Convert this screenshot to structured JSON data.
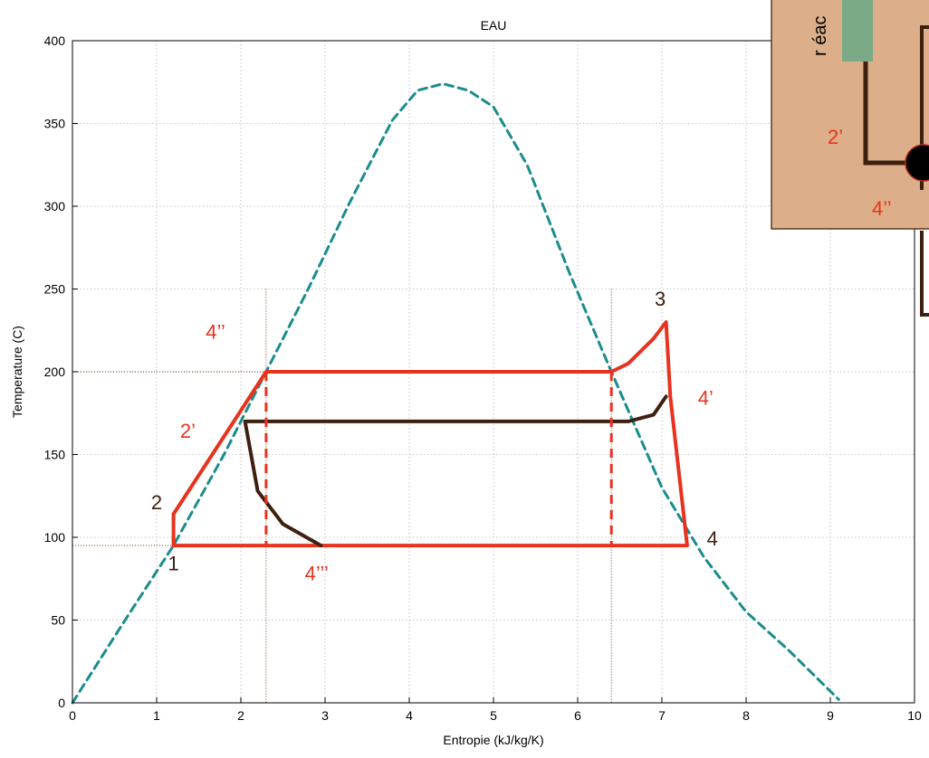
{
  "chart_data": {
    "type": "line",
    "title": "EAU",
    "xlabel": "Entropie (kJ/kg/K)",
    "ylabel": "Temperature (C)",
    "xlim": [
      0,
      10
    ],
    "ylim": [
      0,
      400
    ],
    "xticks": [
      0,
      1,
      2,
      3,
      4,
      5,
      6,
      7,
      8,
      9,
      10
    ],
    "yticks": [
      0,
      50,
      100,
      150,
      200,
      250,
      300,
      350,
      400
    ],
    "grid": true,
    "colors": {
      "dome": "#1a8c8c",
      "cycle": "#e8321e",
      "regen": "#3d2010",
      "label_dark": "#3d2010",
      "label_red": "#e8321e",
      "inset_bg": "#dcae89",
      "inset_block": "#7aaa86"
    },
    "series": [
      {
        "role": "saturation-dome",
        "style": "dashed",
        "color": "#1a8c8c",
        "x": [
          0.0,
          0.6,
          1.2,
          1.8,
          2.3,
          2.8,
          3.3,
          3.8,
          4.1,
          4.4,
          4.7,
          5.0,
          5.4,
          5.9,
          6.4,
          7.0,
          7.5,
          8.0,
          8.5,
          9.1
        ],
        "y": [
          0,
          48,
          95,
          150,
          200,
          250,
          303,
          352,
          370,
          374,
          370,
          360,
          325,
          260,
          200,
          130,
          88,
          55,
          32,
          2
        ]
      },
      {
        "role": "main-cycle",
        "style": "solid",
        "color": "#e8321e",
        "x": [
          1.2,
          1.2,
          2.3,
          6.4,
          6.6,
          6.9,
          7.05,
          7.1,
          7.3,
          1.2
        ],
        "y": [
          95,
          114,
          200,
          200,
          205,
          220,
          230,
          185,
          95,
          95
        ]
      },
      {
        "role": "regeneration-curve",
        "style": "solid",
        "color": "#3d2010",
        "x": [
          7.05,
          6.9,
          6.6,
          2.05,
          2.2,
          2.5,
          2.95
        ],
        "y": [
          185,
          174,
          170,
          170,
          128,
          108,
          95
        ]
      },
      {
        "role": "vertical-dashes",
        "style": "dashed",
        "color": "#e8321e",
        "x": [
          2.3,
          6.4
        ],
        "y": [
          200,
          95
        ]
      }
    ],
    "point_labels": [
      {
        "text": "1",
        "x": 1.2,
        "y": 80,
        "color": "dark"
      },
      {
        "text": "2",
        "x": 1.0,
        "y": 117,
        "color": "dark"
      },
      {
        "text": "3",
        "x": 6.98,
        "y": 240,
        "color": "dark"
      },
      {
        "text": "4",
        "x": 7.6,
        "y": 95,
        "color": "dark"
      },
      {
        "text": "2’",
        "x": 1.37,
        "y": 160,
        "color": "red"
      },
      {
        "text": "4’’",
        "x": 1.7,
        "y": 220,
        "color": "red"
      },
      {
        "text": "4’",
        "x": 7.52,
        "y": 180,
        "color": "red"
      },
      {
        "text": "4’’’",
        "x": 2.9,
        "y": 74,
        "color": "red"
      }
    ],
    "inset": {
      "label": "r éac",
      "labels": [
        "2’",
        "4’’"
      ]
    }
  }
}
